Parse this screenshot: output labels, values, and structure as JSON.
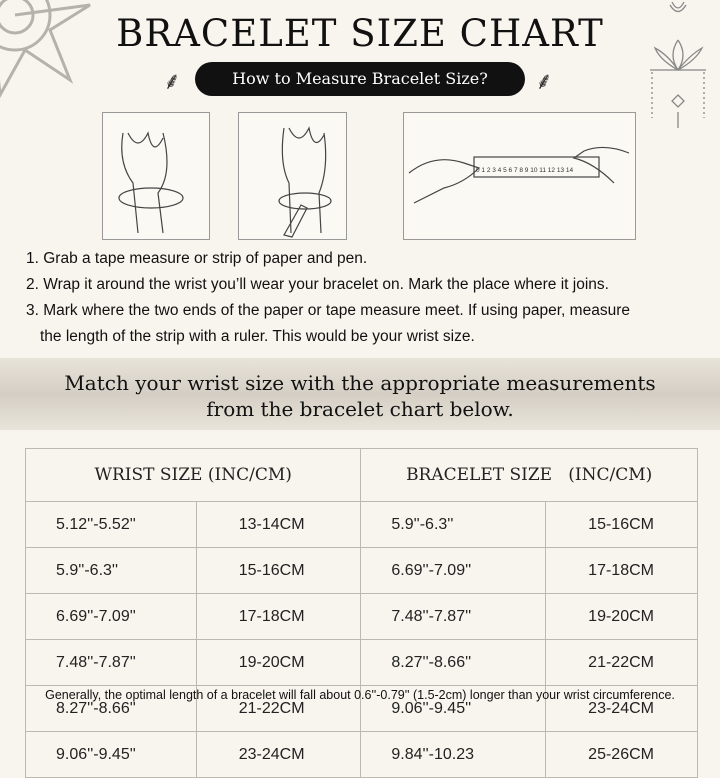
{
  "title": "BRACELET SIZE CHART",
  "subtitle": "How to Measure Bracelet Size?",
  "steps": [
    "1. Grab a tape measure or strip of paper and pen.",
    "2. Wrap it around the wrist you’ll wear your bracelet on. Mark the place where it joins.",
    "3. Mark where the two ends of the paper or tape measure meet. If using paper, measure",
    "the length of the strip with a ruler. This would be your wrist size."
  ],
  "ruler_numbers": "0 1 2 3 4 5 6 7 8 9 10 11 12 13 14",
  "banner": [
    "Match your wrist size with the appropriate measurements",
    "from the bracelet chart below."
  ],
  "table": {
    "headers": [
      "WRIST SIZE (INC/CM)",
      "BRACELET SIZE   (INC/CM)"
    ],
    "rows": [
      [
        "5.12''-5.52''",
        "13-14CM",
        "5.9''-6.3''",
        "15-16CM"
      ],
      [
        "5.9''-6.3''",
        "15-16CM",
        "6.69''-7.09''",
        "17-18CM"
      ],
      [
        "6.69''-7.09''",
        "17-18CM",
        "7.48''-7.87''",
        "19-20CM"
      ],
      [
        "7.48''-7.87''",
        "19-20CM",
        "8.27''-8.66''",
        "21-22CM"
      ],
      [
        "8.27''-8.66''",
        "21-22CM",
        "9.06''-9.45''",
        "23-24CM"
      ],
      [
        "9.06''-9.45''",
        "23-24CM",
        "9.84''-10.23",
        "25-26CM"
      ]
    ]
  },
  "footnote": "Generally, the optimal length of a bracelet will fall about 0.6''-0.79'' (1.5-2cm) longer than your wrist circumference."
}
